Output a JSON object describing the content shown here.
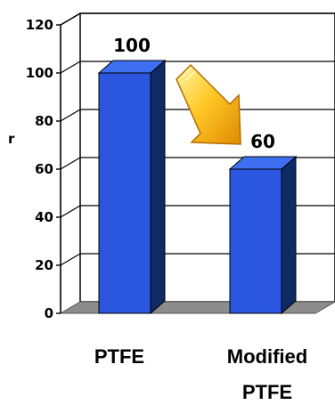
{
  "chart_data": {
    "type": "bar",
    "categories": [
      "PTFE",
      "Modified PTFE"
    ],
    "category_lines": [
      [
        "PTFE"
      ],
      [
        "Modified",
        "PTFE"
      ]
    ],
    "values": [
      100,
      60
    ],
    "data_labels": [
      "100",
      "60"
    ],
    "ylabel": "r",
    "ylim": [
      0,
      120
    ],
    "yticks": [
      "0",
      "20",
      "40",
      "60",
      "80",
      "100",
      "120"
    ],
    "grid": true,
    "legend": "none",
    "colors": {
      "bar_front": "#2b56e0",
      "bar_side": "#0f2b66",
      "bar_top": "#3d6ff0",
      "floor": "#8c8c8c",
      "arrow": "#f5a800"
    },
    "annotation": "arrow-down-right"
  }
}
